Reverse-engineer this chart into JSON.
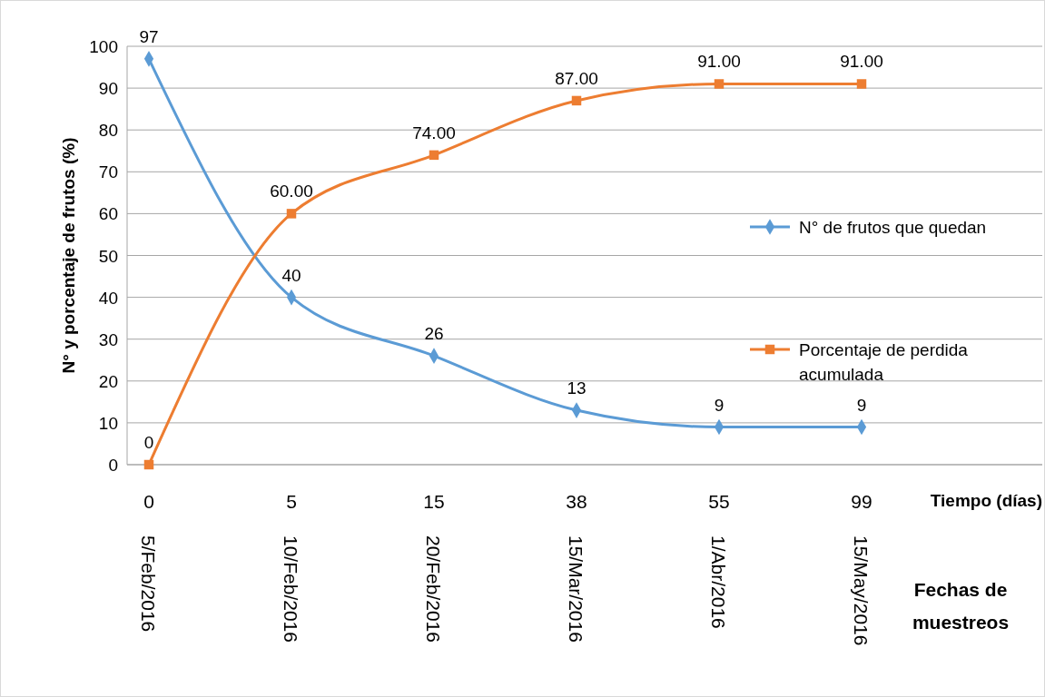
{
  "chart_data": {
    "type": "line",
    "xlabel": "Tiempo (días)",
    "ylabel": "N° y porcentaje de frutos (%)",
    "categories": [
      "0\n5/Feb/2016",
      "5\n10/Feb/2016",
      "15\n20/Feb/2016",
      "38\n15/Mar/2016",
      "55\n1/Abr/2016",
      "99\n15/May/2016"
    ],
    "series": [
      {
        "name": "N° de frutos que quedan",
        "color": "#5b9bd5",
        "marker": "diamond",
        "values": [
          97,
          40,
          26,
          13,
          9,
          9
        ],
        "value_labels": [
          "97",
          "40",
          "26",
          "13",
          "9",
          "9"
        ]
      },
      {
        "name": "Porcentaje de perdida acumulada",
        "color": "#ed7d31",
        "marker": "square",
        "values": [
          0,
          60,
          74,
          87,
          91,
          91
        ],
        "value_labels": [
          "0",
          "60.00",
          "74.00",
          "87.00",
          "91.00",
          "91.00"
        ]
      }
    ],
    "ylim": [
      0,
      100
    ],
    "yticks": [
      0,
      10,
      20,
      30,
      40,
      50,
      60,
      70,
      80,
      90,
      100
    ],
    "grid": "y",
    "legend": "right",
    "annotations": [
      "Fechas de muestreos"
    ]
  }
}
